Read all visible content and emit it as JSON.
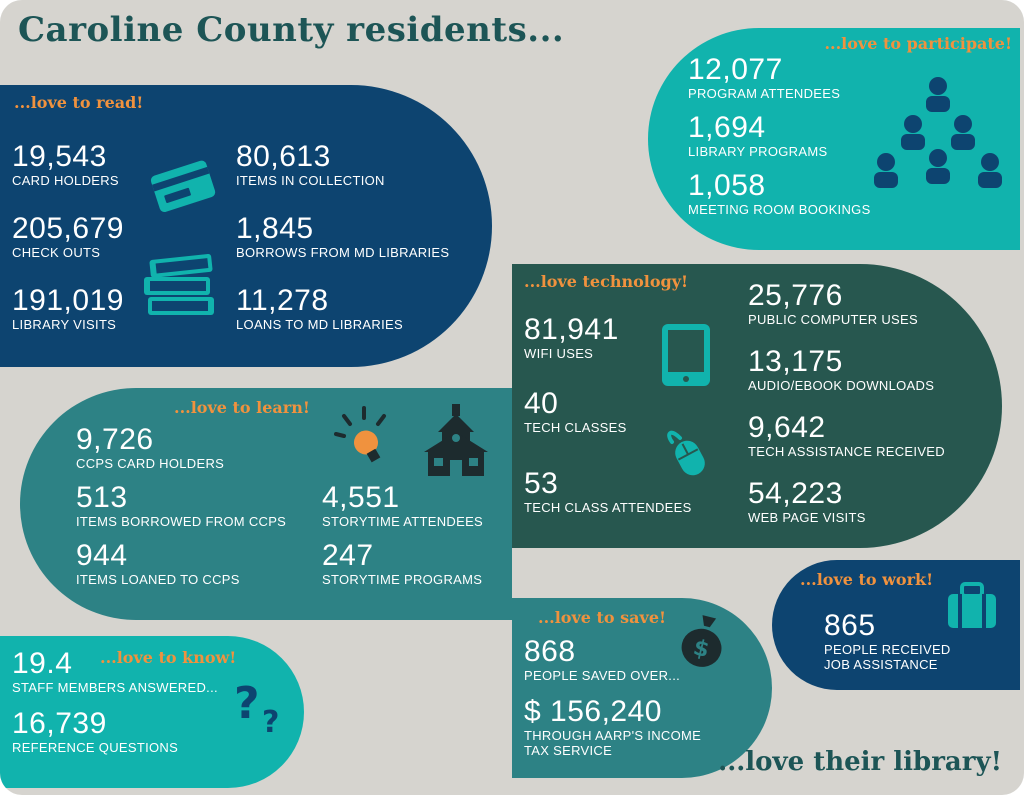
{
  "header": {
    "title": "Caroline County residents..."
  },
  "footer": {
    "tagline": "...love their library!"
  },
  "colors": {
    "background": "#d6d4cf",
    "navy": "#0d4470",
    "teal_bright": "#11b3ad",
    "teal_mid": "#2d8285",
    "dark_green": "#27574f",
    "orange": "#f0923e",
    "title_green": "#1d5556"
  },
  "read": {
    "tag": "...love to read!",
    "stats": [
      {
        "value": "19,543",
        "label": "Card Holders"
      },
      {
        "value": "205,679",
        "label": "Check Outs"
      },
      {
        "value": "191,019",
        "label": "Library Visits"
      },
      {
        "value": "80,613",
        "label": "Items in Collection"
      },
      {
        "value": "1,845",
        "label": "Borrows from MD Libraries"
      },
      {
        "value": "11,278",
        "label": "Loans to MD Libraries"
      }
    ],
    "icons": [
      "credit-card-icon",
      "books-stack-icon"
    ]
  },
  "participate": {
    "tag": "...love to participate!",
    "stats": [
      {
        "value": "12,077",
        "label": "Program Attendees"
      },
      {
        "value": "1,694",
        "label": "Library Programs"
      },
      {
        "value": "1,058",
        "label": "Meeting Room Bookings"
      }
    ],
    "icons": [
      "people-pyramid-icon"
    ]
  },
  "technology": {
    "tag": "...love technology!",
    "stats": [
      {
        "value": "81,941",
        "label": "WiFi Uses"
      },
      {
        "value": "40",
        "label": "Tech Classes"
      },
      {
        "value": "53",
        "label": "Tech Class Attendees"
      },
      {
        "value": "25,776",
        "label": "Public Computer Uses"
      },
      {
        "value": "13,175",
        "label": "Audio/eBook Downloads"
      },
      {
        "value": "9,642",
        "label": "Tech Assistance Received"
      },
      {
        "value": "54,223",
        "label": "Web Page Visits"
      }
    ],
    "icons": [
      "tablet-icon",
      "mouse-icon"
    ]
  },
  "learn": {
    "tag": "...love to learn!",
    "stats": [
      {
        "value": "9,726",
        "label": "CCPS Card Holders"
      },
      {
        "value": "513",
        "label": "Items Borrowed from CCPS"
      },
      {
        "value": "944",
        "label": "Items Loaned to CCPS"
      },
      {
        "value": "4,551",
        "label": "Storytime Attendees"
      },
      {
        "value": "247",
        "label": "Storytime Programs"
      }
    ],
    "icons": [
      "lightbulb-icon",
      "schoolhouse-icon"
    ]
  },
  "know": {
    "tag": "...love to know!",
    "stats": [
      {
        "value": "19.4",
        "label": "Staff Members Answered..."
      },
      {
        "value": "16,739",
        "label": "Reference Questions"
      }
    ],
    "icons": [
      "question-marks-icon"
    ]
  },
  "save": {
    "tag": "...love to save!",
    "stats": [
      {
        "value": "868",
        "label": "People Saved Over..."
      },
      {
        "value": "$ 156,240",
        "label": "Through AARP's Income Tax Service"
      }
    ],
    "icons": [
      "money-bag-icon"
    ]
  },
  "work": {
    "tag": "...love to work!",
    "stats": [
      {
        "value": "865",
        "label": "People Received Job Assistance"
      }
    ],
    "icons": [
      "briefcase-icon"
    ]
  }
}
